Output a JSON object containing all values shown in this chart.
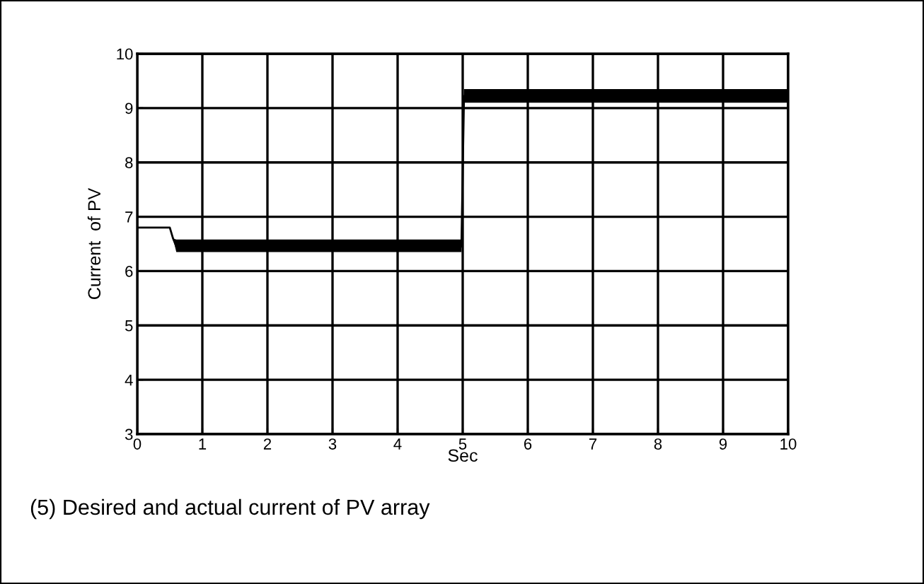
{
  "chart_data": {
    "type": "line",
    "xlabel": "Sec",
    "ylabel": "Current  of PV",
    "annotations": [
      "(5) Desired and actual current of PV array"
    ],
    "series": [
      {
        "color": "#000000",
        "x": [
          0,
          0.5,
          0.55,
          0.6,
          1,
          2,
          3,
          4,
          4.98,
          5.02,
          6,
          7,
          8,
          9,
          10
        ],
        "values": [
          6.8,
          6.8,
          6.6,
          6.45,
          6.45,
          6.45,
          6.45,
          6.45,
          6.45,
          9.22,
          9.22,
          9.22,
          9.22,
          9.22,
          9.22
        ],
        "lower": [
          6.8,
          6.8,
          6.6,
          6.35,
          6.35,
          6.35,
          6.35,
          6.35,
          6.35,
          9.1,
          9.1,
          9.1,
          9.1,
          9.1,
          9.1
        ],
        "upper": [
          6.8,
          6.8,
          6.6,
          6.58,
          6.58,
          6.58,
          6.58,
          6.58,
          6.58,
          9.35,
          9.35,
          9.35,
          9.35,
          9.35,
          9.35
        ]
      }
    ],
    "xlim": [
      0,
      10
    ],
    "ylim": [
      3,
      10
    ],
    "xticks": [
      0,
      1,
      2,
      3,
      4,
      5,
      6,
      7,
      8,
      9,
      10
    ],
    "yticks": [
      3,
      4,
      5,
      6,
      7,
      8,
      9,
      10
    ],
    "grid": true
  }
}
